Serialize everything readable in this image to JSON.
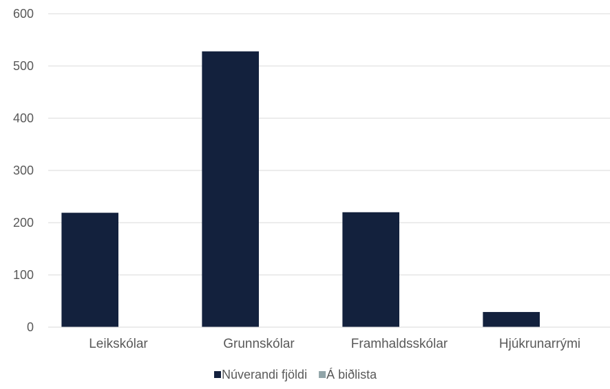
{
  "chart_data": {
    "type": "bar",
    "title": "",
    "xlabel": "",
    "ylabel": "",
    "categories": [
      "Leikskólar",
      "Grunnskólar",
      "Framhaldsskólar",
      "Hjúkrunarrými"
    ],
    "series": [
      {
        "name": "Núverandi fjöldi",
        "color": "#13213d",
        "values": [
          219,
          528,
          220,
          29
        ]
      },
      {
        "name": "Á biðlista",
        "color": "#90a4a8",
        "values": [
          0,
          0,
          0,
          0
        ]
      }
    ],
    "ylim": [
      0,
      600
    ],
    "yticks": [
      0,
      100,
      200,
      300,
      400,
      500,
      600
    ],
    "grid": true,
    "legend_position": "bottom"
  }
}
